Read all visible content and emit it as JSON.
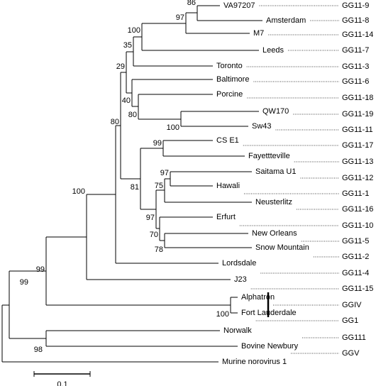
{
  "leaves": [
    "VA97207",
    "Amsterdam",
    "M7",
    "Leeds",
    "Toronto",
    "Baltimore",
    "Porcine",
    "QW170",
    "Sw43",
    "CS E1",
    "Fayettteville",
    "Saitama U1",
    "Hawali",
    "Neusterlitz",
    "Erfurt",
    "New Orleans",
    "Snow Mountain",
    "Lordsdale",
    "J23",
    "Alphatron",
    "Fort Lauderdale",
    "Norwalk",
    "Bovine Newbury",
    "Murine norovirus 1"
  ],
  "groups": [
    "GG11-9",
    "GG11-8",
    "GG11-14",
    "GG11-7",
    "GG11-3",
    "GG11-6",
    "GG11-18",
    "GG11-19",
    "GG11-11",
    "GG11-17",
    "GG11-13",
    "GG11-12",
    "GG11-1",
    "GG11-16",
    "GG11-10",
    "GG11-5",
    "GG11-2",
    "GG11-4",
    "GG11-15",
    "GGIV",
    "GG1",
    "GG111",
    "GGV"
  ],
  "bootstrap": [
    86,
    97,
    100,
    35,
    29,
    40,
    80,
    100,
    80,
    81,
    99,
    97,
    75,
    97,
    70,
    78,
    100,
    100,
    99,
    99,
    98
  ],
  "scale_bar": {
    "label": "0.1"
  }
}
